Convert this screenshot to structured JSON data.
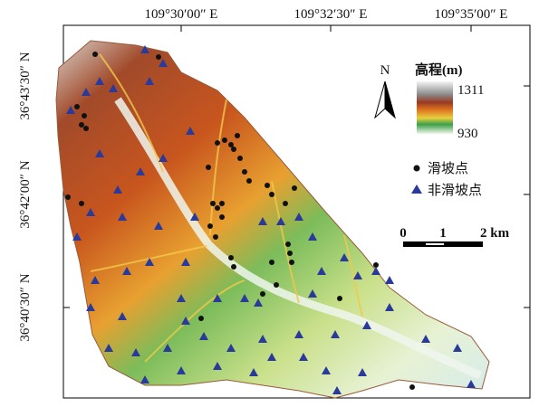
{
  "map": {
    "top_labels": [
      "109°30′00″ E",
      "109°32′30″ E",
      "109°35′00″ E"
    ],
    "left_labels": [
      "36°43′30″ N",
      "36°42′00″ N",
      "36°40′30″ N"
    ],
    "north": "N",
    "legend": {
      "title": "高程(m)",
      "max": "1311",
      "min": "930",
      "items": [
        "滑坡点",
        "非滑坡点"
      ]
    },
    "scale": [
      "0",
      "1",
      "2 km"
    ]
  }
}
